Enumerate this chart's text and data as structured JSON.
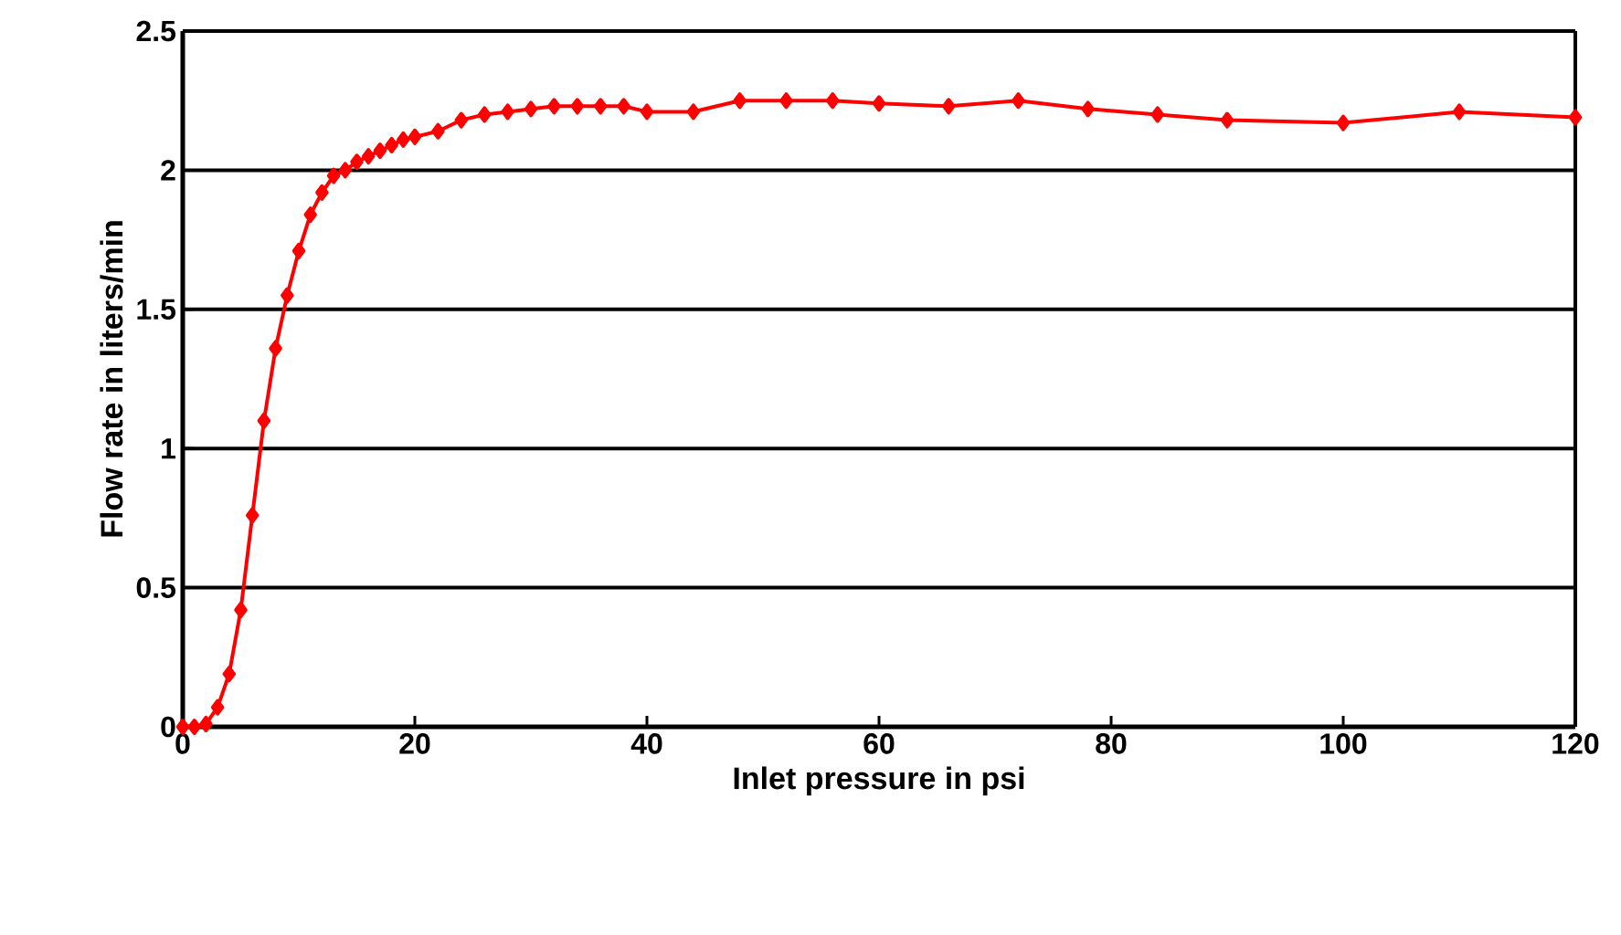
{
  "chart_data": {
    "type": "line",
    "xlabel": "Inlet pressure in psi",
    "ylabel": "Flow rate in liters/min",
    "x": [
      0,
      1,
      2,
      3,
      4,
      5,
      6,
      7,
      8,
      9,
      10,
      11,
      12,
      13,
      14,
      15,
      16,
      17,
      18,
      19,
      20,
      22,
      24,
      26,
      28,
      30,
      32,
      34,
      36,
      38,
      40,
      44,
      48,
      52,
      56,
      60,
      66,
      72,
      78,
      84,
      90,
      100,
      110,
      120
    ],
    "series": [
      {
        "color": "#ff0000",
        "values": [
          0,
          0,
          0.01,
          0.07,
          0.19,
          0.42,
          0.76,
          1.1,
          1.36,
          1.55,
          1.71,
          1.84,
          1.92,
          1.98,
          2.0,
          2.03,
          2.05,
          2.07,
          2.09,
          2.11,
          2.12,
          2.14,
          2.18,
          2.2,
          2.21,
          2.22,
          2.23,
          2.23,
          2.23,
          2.23,
          2.21,
          2.21,
          2.25,
          2.25,
          2.25,
          2.24,
          2.23,
          2.25,
          2.22,
          2.2,
          2.18,
          2.17,
          2.21,
          2.19
        ]
      }
    ],
    "xlim": [
      0,
      120
    ],
    "ylim": [
      0,
      2.5
    ],
    "xticks": [
      0,
      20,
      40,
      60,
      80,
      100,
      120
    ],
    "yticks": [
      0,
      0.5,
      1,
      1.5,
      2,
      2.5
    ],
    "grid": "y",
    "marker": "diamond",
    "line_style": "solid"
  }
}
